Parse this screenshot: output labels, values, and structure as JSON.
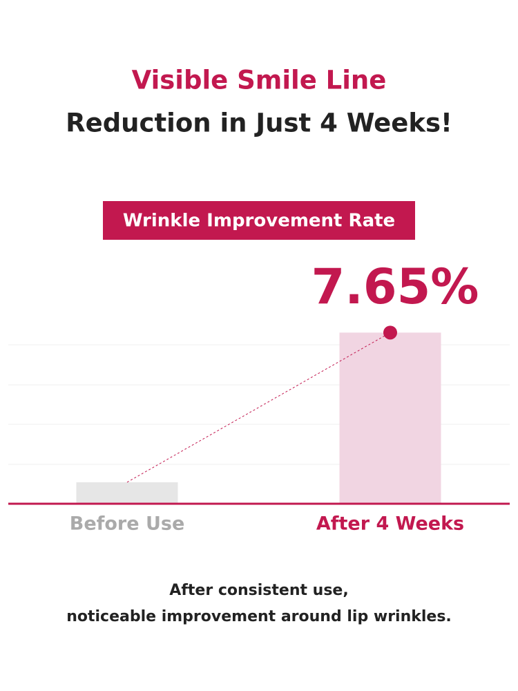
{
  "title": "Visible Smile Line",
  "subtitle": "Reduction in Just 4 Weeks!",
  "chart_data": {
    "type": "bar",
    "title": "Wrinkle Improvement Rate",
    "categories": [
      "Before Use",
      "After 4 Weeks"
    ],
    "values": [
      0.96,
      7.65
    ],
    "value_labels": [
      null,
      "7.65%"
    ],
    "colors": [
      "#e6e6e6",
      "#f1d5e2"
    ],
    "ylim": [
      0,
      8
    ]
  },
  "footer": [
    "After consistent use,",
    "noticeable improvement around lip wrinkles."
  ]
}
